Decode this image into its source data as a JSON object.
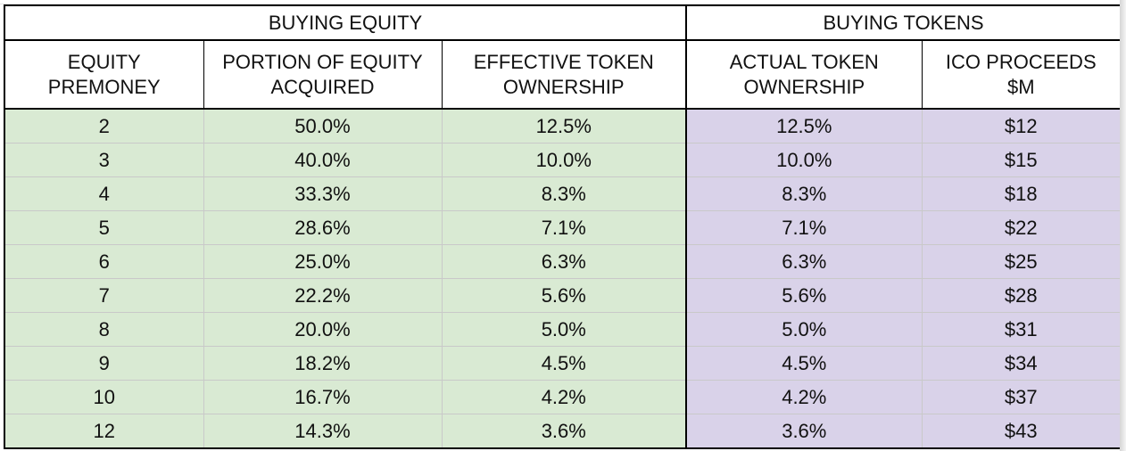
{
  "groups": {
    "equity": "BUYING EQUITY",
    "tokens": "BUYING TOKENS"
  },
  "columns": [
    {
      "line1": "EQUITY",
      "line2": "PREMONEY"
    },
    {
      "line1": "PORTION OF EQUITY",
      "line2": "ACQUIRED"
    },
    {
      "line1": "EFFECTIVE TOKEN",
      "line2": "OWNERSHIP"
    },
    {
      "line1": "ACTUAL TOKEN",
      "line2": "OWNERSHIP"
    },
    {
      "line1": "ICO PROCEEDS",
      "line2": "$M"
    }
  ],
  "rows": [
    [
      "2",
      "50.0%",
      "12.5%",
      "12.5%",
      "$12"
    ],
    [
      "3",
      "40.0%",
      "10.0%",
      "10.0%",
      "$15"
    ],
    [
      "4",
      "33.3%",
      "8.3%",
      "8.3%",
      "$18"
    ],
    [
      "5",
      "28.6%",
      "7.1%",
      "7.1%",
      "$22"
    ],
    [
      "6",
      "25.0%",
      "6.3%",
      "6.3%",
      "$25"
    ],
    [
      "7",
      "22.2%",
      "5.6%",
      "5.6%",
      "$28"
    ],
    [
      "8",
      "20.0%",
      "5.0%",
      "5.0%",
      "$31"
    ],
    [
      "9",
      "18.2%",
      "4.5%",
      "4.5%",
      "$34"
    ],
    [
      "10",
      "16.7%",
      "4.2%",
      "4.2%",
      "$37"
    ],
    [
      "12",
      "14.3%",
      "3.6%",
      "3.6%",
      "$43"
    ]
  ],
  "colors": {
    "equity_fill": "#d9ead3",
    "tokens_fill": "#d9d2e9",
    "border": "#000000"
  }
}
